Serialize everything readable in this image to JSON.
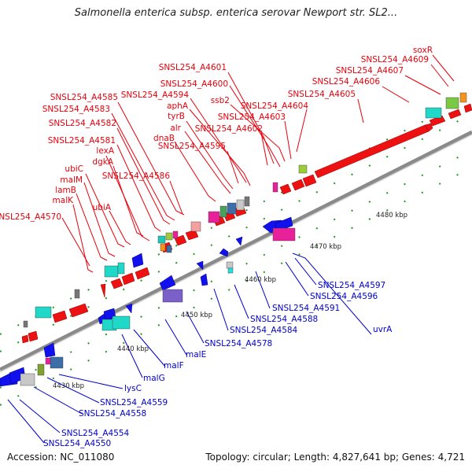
{
  "title": "Salmonella enterica subsp. enterica serovar Newport str. SL2...",
  "footer": {
    "accession": "Accession: NC_011080",
    "topology": "Topology: circular; Length: 4,827,641 bp; Genes: 4,721"
  },
  "colors": {
    "forward_label": "#e8000b",
    "reverse_label": "#0000cc",
    "backbone": "#8a8a8a",
    "forward_gene": "#ee1111",
    "reverse_gene": "#1111ee"
  },
  "tick_labels": [
    "4430 kbp",
    "4440 kbp",
    "4450 kbp",
    "4460 kbp",
    "4470 kbp",
    "4480 kbp"
  ],
  "labels_forward": [
    "soxR",
    "SNSL254_A4609",
    "SNSL254_A4607",
    "SNSL254_A4606",
    "SNSL254_A4605",
    "SNSL254_A4601",
    "SNSL254_A4600",
    "SNSL254_A4594",
    "ssb2",
    "SNSL254_A4604",
    "aphA",
    "SNSL254_A4603",
    "SNSL254_A4585",
    "tyrB",
    "SNSL254_A4583",
    "alr",
    "SNSL254_A4602",
    "SNSL254_A4582",
    "dnaB",
    "SNSL254_A4595",
    "SNSL254_A4581",
    "lexA",
    "dgkA",
    "ubiC",
    "SNSL254_A4586",
    "malM",
    "lamB",
    "malK",
    "ubiA",
    "SNSL254_A4570"
  ],
  "labels_reverse": [
    "uvrA",
    "SNSL254_A4597",
    "SNSL254_A4596",
    "SNSL254_A4591",
    "SNSL254_A4588",
    "SNSL254_A4584",
    "SNSL254_A4578",
    "malE",
    "malF",
    "malG",
    "lysC",
    "SNSL254_A4559",
    "SNSL254_A4558",
    "SNSL254_A4554",
    "SNSL254_A4550"
  ]
}
